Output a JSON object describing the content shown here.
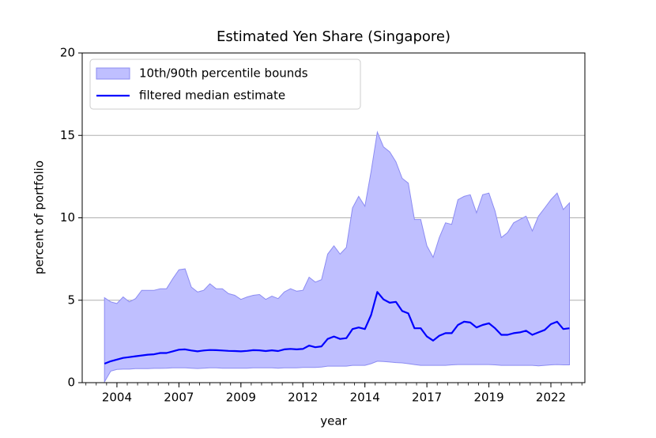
{
  "chart_data": {
    "type": "line",
    "title": "Estimated Yen Share (Singapore)",
    "xlabel": "year",
    "ylabel": "percent of portfolio",
    "x": [
      2004,
      2004.25,
      2004.5,
      2004.75,
      2005,
      2005.25,
      2005.5,
      2005.75,
      2006,
      2006.25,
      2006.5,
      2006.75,
      2007,
      2007.25,
      2007.5,
      2007.75,
      2008,
      2008.25,
      2008.5,
      2008.75,
      2009,
      2009.25,
      2009.5,
      2009.75,
      2010,
      2010.25,
      2010.5,
      2010.75,
      2011,
      2011.25,
      2011.5,
      2011.75,
      2012,
      2012.25,
      2012.5,
      2012.75,
      2013,
      2013.25,
      2013.5,
      2013.75,
      2014,
      2014.25,
      2014.5,
      2014.75,
      2015,
      2015.25,
      2015.5,
      2015.75,
      2016,
      2016.25,
      2016.5,
      2016.75,
      2017,
      2017.25,
      2017.5,
      2017.75,
      2018,
      2018.25,
      2018.5,
      2018.75,
      2019,
      2019.25,
      2019.5,
      2019.75,
      2020,
      2020.25,
      2020.5,
      2020.75,
      2021,
      2021.25,
      2021.5,
      2021.75,
      2022,
      2022.25,
      2022.5,
      2022.75
    ],
    "band": {
      "name": "10th/90th percentile bounds",
      "color": "#bfbfff",
      "edge_color": "#8c8cf2",
      "upper": [
        5.15,
        4.9,
        4.8,
        5.2,
        4.9,
        5.1,
        5.6,
        5.6,
        5.6,
        5.7,
        5.7,
        6.3,
        6.85,
        6.9,
        5.8,
        5.5,
        5.6,
        6.0,
        5.7,
        5.7,
        5.4,
        5.3,
        5.05,
        5.2,
        5.3,
        5.35,
        5.05,
        5.25,
        5.1,
        5.5,
        5.7,
        5.55,
        5.6,
        6.4,
        6.1,
        6.25,
        7.8,
        8.3,
        7.8,
        8.2,
        10.6,
        11.3,
        10.7,
        12.8,
        15.2,
        14.3,
        14.0,
        13.4,
        12.4,
        12.1,
        9.9,
        9.9,
        8.3,
        7.6,
        8.8,
        9.7,
        9.6,
        11.1,
        11.3,
        11.4,
        10.3,
        11.4,
        11.5,
        10.4,
        8.8,
        9.1,
        9.7,
        9.9,
        10.1,
        9.2,
        10.1,
        10.6,
        11.1,
        11.5,
        10.5,
        10.9
      ],
      "lower": [
        0.05,
        0.7,
        0.8,
        0.82,
        0.82,
        0.85,
        0.85,
        0.85,
        0.87,
        0.87,
        0.88,
        0.9,
        0.9,
        0.9,
        0.88,
        0.86,
        0.88,
        0.9,
        0.9,
        0.88,
        0.88,
        0.88,
        0.88,
        0.88,
        0.9,
        0.9,
        0.9,
        0.9,
        0.88,
        0.9,
        0.9,
        0.9,
        0.92,
        0.92,
        0.92,
        0.95,
        1.0,
        1.0,
        1.0,
        1.0,
        1.05,
        1.05,
        1.05,
        1.15,
        1.3,
        1.28,
        1.25,
        1.22,
        1.2,
        1.15,
        1.1,
        1.05,
        1.05,
        1.05,
        1.05,
        1.05,
        1.08,
        1.1,
        1.1,
        1.1,
        1.1,
        1.1,
        1.1,
        1.08,
        1.05,
        1.05,
        1.05,
        1.05,
        1.05,
        1.05,
        1.02,
        1.05,
        1.08,
        1.1,
        1.08,
        1.08
      ]
    },
    "series": [
      {
        "name": "filtered median estimate",
        "color": "#0000ff",
        "values": [
          1.15,
          1.3,
          1.4,
          1.5,
          1.55,
          1.6,
          1.65,
          1.7,
          1.72,
          1.8,
          1.8,
          1.9,
          2.0,
          2.02,
          1.95,
          1.9,
          1.95,
          1.98,
          1.97,
          1.95,
          1.93,
          1.92,
          1.9,
          1.93,
          1.97,
          1.96,
          1.92,
          1.96,
          1.92,
          2.02,
          2.05,
          2.02,
          2.05,
          2.25,
          2.15,
          2.2,
          2.65,
          2.8,
          2.65,
          2.7,
          3.25,
          3.35,
          3.25,
          4.1,
          5.5,
          5.05,
          4.85,
          4.9,
          4.35,
          4.2,
          3.3,
          3.3,
          2.8,
          2.55,
          2.85,
          3.0,
          3.0,
          3.5,
          3.7,
          3.65,
          3.35,
          3.5,
          3.6,
          3.3,
          2.9,
          2.9,
          3.0,
          3.05,
          3.15,
          2.9,
          3.05,
          3.2,
          3.55,
          3.7,
          3.25,
          3.3
        ]
      }
    ],
    "xlim": [
      2003.1,
      2023.37
    ],
    "xticks": [
      {
        "value": 2004.5,
        "label": "2004"
      },
      {
        "value": 2007,
        "label": "2007"
      },
      {
        "value": 2009.5,
        "label": "2009"
      },
      {
        "value": 2012,
        "label": "2012"
      },
      {
        "value": 2014.5,
        "label": "2014"
      },
      {
        "value": 2017,
        "label": "2017"
      },
      {
        "value": 2019.5,
        "label": "2019"
      },
      {
        "value": 2022,
        "label": "2022"
      }
    ],
    "ylim": [
      0,
      20
    ],
    "yticks": [
      0,
      5,
      10,
      15,
      20
    ],
    "grid": "y",
    "legend": "upper left"
  }
}
